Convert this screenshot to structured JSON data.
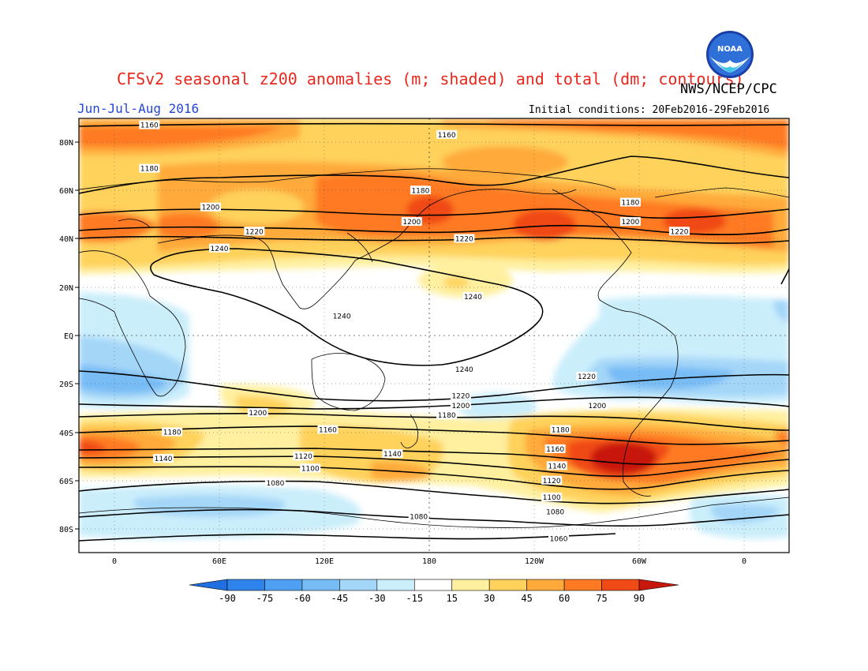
{
  "header": {
    "title": "CFSv2 seasonal z200 anomalies (m; shaded) and total (dm; contours)",
    "period": "Jun-Jul-Aug 2016",
    "agency": "NWS/NCEP/CPC",
    "initial_conditions": "Initial conditions: 20Feb2016-29Feb2016",
    "logo_text": "NOAA"
  },
  "axes": {
    "lat_labels": [
      "80N",
      "60N",
      "40N",
      "20N",
      "EQ",
      "20S",
      "40S",
      "60S",
      "80S"
    ],
    "lon_labels": [
      "0",
      "60E",
      "120E",
      "180",
      "120W",
      "60W",
      "0"
    ]
  },
  "colorbar": {
    "ticks": [
      "-90",
      "-75",
      "-60",
      "-45",
      "-30",
      "-15",
      "15",
      "30",
      "45",
      "60",
      "75",
      "90"
    ],
    "colors": [
      "#1f6fe0",
      "#2f84ec",
      "#4fa0f3",
      "#78bcf6",
      "#a4d6f8",
      "#cbeefb",
      "#ffffff",
      "#fff0a0",
      "#ffd25c",
      "#ffaa3a",
      "#ff7a22",
      "#f04a16",
      "#c8180c"
    ]
  },
  "contour_labels": [
    {
      "text": "1160",
      "lon": 20,
      "lat": 87
    },
    {
      "text": "1160",
      "lon": 190,
      "lat": 83
    },
    {
      "text": "1180",
      "lon": 20,
      "lat": 69
    },
    {
      "text": "1180",
      "lon": 175,
      "lat": 60
    },
    {
      "text": "1180",
      "lon": 295,
      "lat": 55
    },
    {
      "text": "1200",
      "lon": 55,
      "lat": 53
    },
    {
      "text": "1200",
      "lon": 170,
      "lat": 47
    },
    {
      "text": "1200",
      "lon": 295,
      "lat": 47
    },
    {
      "text": "1220",
      "lon": 80,
      "lat": 43
    },
    {
      "text": "1220",
      "lon": 200,
      "lat": 40
    },
    {
      "text": "1220",
      "lon": 323,
      "lat": 43
    },
    {
      "text": "1240",
      "lon": 60,
      "lat": 36
    },
    {
      "text": "1240",
      "lon": 130,
      "lat": 8
    },
    {
      "text": "1240",
      "lon": 205,
      "lat": 16
    },
    {
      "text": "1240",
      "lon": 200,
      "lat": -14
    },
    {
      "text": "1220",
      "lon": 270,
      "lat": -17
    },
    {
      "text": "1220",
      "lon": 198,
      "lat": -25
    },
    {
      "text": "1200",
      "lon": 198,
      "lat": -29
    },
    {
      "text": "1200",
      "lon": 82,
      "lat": -32
    },
    {
      "text": "1200",
      "lon": 276,
      "lat": -29
    },
    {
      "text": "1180",
      "lon": 190,
      "lat": -33
    },
    {
      "text": "1180",
      "lon": 255,
      "lat": -39
    },
    {
      "text": "1180",
      "lon": 33,
      "lat": -40
    },
    {
      "text": "1160",
      "lon": 122,
      "lat": -39
    },
    {
      "text": "1160",
      "lon": 252,
      "lat": -47
    },
    {
      "text": "1140",
      "lon": 28,
      "lat": -51
    },
    {
      "text": "1140",
      "lon": 159,
      "lat": -49
    },
    {
      "text": "1140",
      "lon": 253,
      "lat": -54
    },
    {
      "text": "1120",
      "lon": 108,
      "lat": -50
    },
    {
      "text": "1120",
      "lon": 250,
      "lat": -60
    },
    {
      "text": "1100",
      "lon": 112,
      "lat": -55
    },
    {
      "text": "1100",
      "lon": 250,
      "lat": -67
    },
    {
      "text": "1080",
      "lon": 92,
      "lat": -61
    },
    {
      "text": "1080",
      "lon": 174,
      "lat": -75
    },
    {
      "text": "1080",
      "lon": 252,
      "lat": -73
    },
    {
      "text": "1060",
      "lon": 254,
      "lat": -84
    }
  ]
}
